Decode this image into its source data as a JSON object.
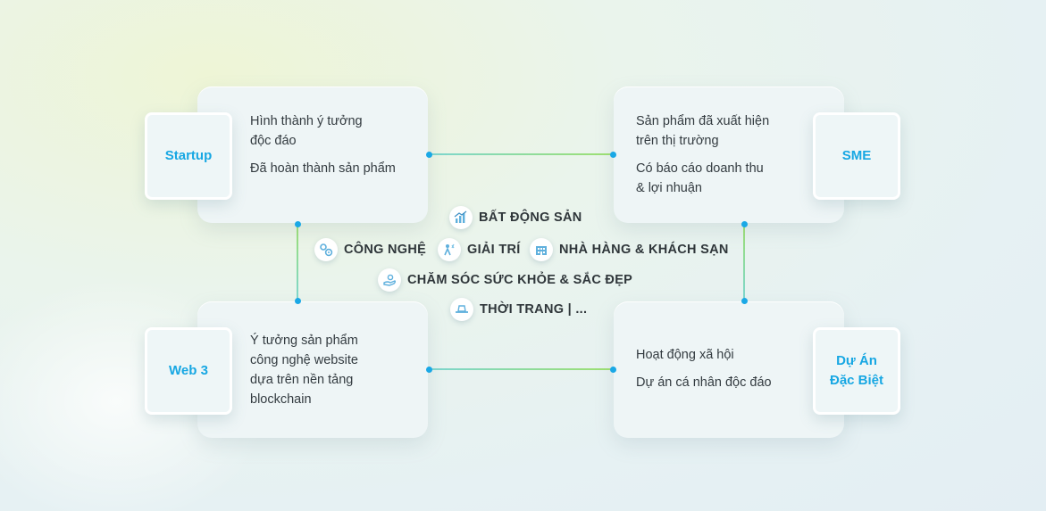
{
  "startup": {
    "title": "Startup",
    "lines": [
      "Hình thành ý tưởng",
      "độc đáo",
      "Đã hoàn thành sản phẩm"
    ]
  },
  "sme": {
    "title": "SME",
    "lines": [
      "Sản phẩm đã xuất hiện",
      "trên thị trường",
      "Có báo cáo doanh thu",
      "& lợi nhuận"
    ]
  },
  "web3": {
    "title": "Web 3",
    "lines": [
      "Ý tưởng sản phẩm",
      "công nghệ website",
      "dựa trên nền tảng",
      "blockchain"
    ]
  },
  "special": {
    "title_1": "Dự Án",
    "title_2": "Đặc Biệt",
    "lines": [
      "Hoạt động xã hội",
      "Dự án cá nhân độc đáo"
    ]
  },
  "industries": {
    "real_estate": "BẤT ĐỘNG SẢN",
    "technology": "CÔNG NGHỆ",
    "entertainment": "GIẢI TRÍ",
    "hospitality": "NHÀ HÀNG & KHÁCH SẠN",
    "health_beauty": "CHĂM SÓC SỨC KHỎE & SẮC ĐẸP",
    "fashion": "THỜI TRANG | ..."
  },
  "colors": {
    "accent": "#17a7e3",
    "connector_start": "#7dd6d0",
    "connector_end": "#9ee070",
    "text": "#333b40"
  }
}
